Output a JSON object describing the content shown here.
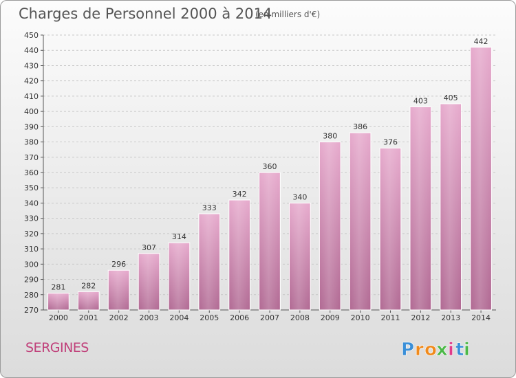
{
  "chart_data": {
    "type": "bar",
    "title": "Charges de Personnel 2000 à 2014",
    "subtitle": "(en milliers d'€)",
    "categories": [
      "2000",
      "2001",
      "2002",
      "2003",
      "2004",
      "2005",
      "2006",
      "2007",
      "2008",
      "2009",
      "2010",
      "2011",
      "2012",
      "2013",
      "2014"
    ],
    "values": [
      281,
      282,
      296,
      307,
      314,
      333,
      342,
      360,
      340,
      380,
      386,
      376,
      403,
      405,
      442
    ],
    "ylim": [
      270,
      450
    ],
    "yticks": [
      270,
      280,
      290,
      300,
      310,
      320,
      330,
      340,
      350,
      360,
      370,
      380,
      390,
      400,
      410,
      420,
      430,
      440,
      450
    ],
    "grid": true,
    "bar_color": "#d68fb8"
  },
  "location": "SERGINES",
  "logo": {
    "letters": [
      "P",
      "r",
      "o",
      "x",
      "i",
      "t",
      "i"
    ],
    "colors": [
      "#3a8fd8",
      "#f08a1c",
      "#f08a1c",
      "#4cb848",
      "#e03c8a",
      "#3a8fd8",
      "#4cb848"
    ]
  },
  "colors": {
    "accent": "#c0407a",
    "bar": "#d68fb8",
    "grid": "#c8c8c8"
  }
}
